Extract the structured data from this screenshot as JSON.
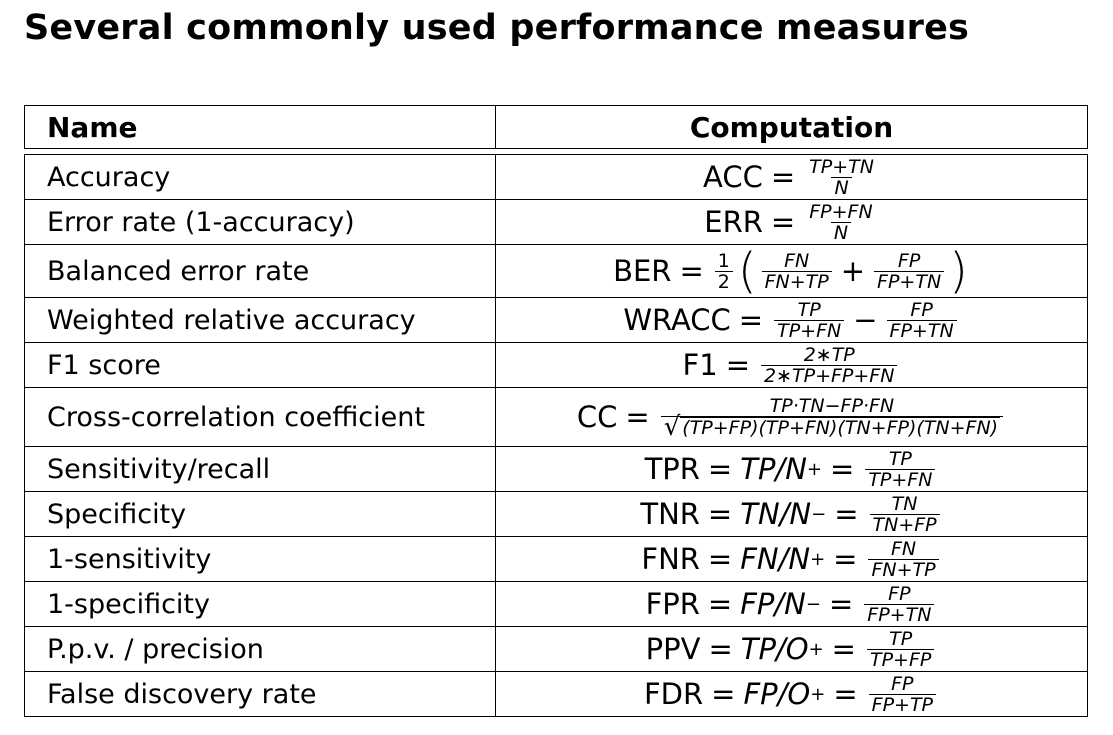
{
  "title": "Several commonly used performance measures",
  "table": {
    "headers": {
      "name": "Name",
      "computation": "Computation"
    },
    "rows": [
      {
        "name": "Accuracy",
        "lhs": "ACC",
        "num": "TP+TN",
        "den": "N"
      },
      {
        "name": "Error rate (1-accuracy)",
        "lhs": "ERR",
        "num": "FP+FN",
        "den": "N"
      },
      {
        "name": "Balanced error rate",
        "lhs": "BER",
        "half_num": "1",
        "half_den": "2",
        "f1_num": "FN",
        "f1_den": "FN+TP",
        "op": "+",
        "f2_num": "FP",
        "f2_den": "FP+TN"
      },
      {
        "name": "Weighted relative accuracy",
        "lhs": "WRACC",
        "f1_num": "TP",
        "f1_den": "TP+FN",
        "op": "−",
        "f2_num": "FP",
        "f2_den": "FP+TN"
      },
      {
        "name": "F1 score",
        "lhs": "F1",
        "num": "2∗TP",
        "den": "2∗TP+FP+FN"
      },
      {
        "name": "Cross-correlation coefficient",
        "lhs": "CC",
        "num": "TP·TN−FP·FN",
        "den": "(TP+FP)(TP+FN)(TN+FP)(TN+FN)"
      },
      {
        "name": "Sensitivity/recall",
        "lhs": "TPR",
        "mid": "TP/N",
        "sup": "+",
        "num": "TP",
        "den": "TP+FN"
      },
      {
        "name": "Specificity",
        "lhs": "TNR",
        "mid": "TN/N",
        "sup": "−",
        "num": "TN",
        "den": "TN+FP"
      },
      {
        "name": "1-sensitivity",
        "lhs": "FNR",
        "mid": "FN/N",
        "sup": "+",
        "num": "FN",
        "den": "FN+TP"
      },
      {
        "name": "1-specificity",
        "lhs": "FPR",
        "mid": "FP/N",
        "sup": "−",
        "num": "FP",
        "den": "FP+TN"
      },
      {
        "name": "P.p.v. / precision",
        "lhs": "PPV",
        "mid": "TP/O",
        "sup": "+",
        "num": "TP",
        "den": "TP+FP"
      },
      {
        "name": "False discovery rate",
        "lhs": "FDR",
        "mid": "FP/O",
        "sup": "+",
        "num": "FP",
        "den": "FP+TP"
      }
    ]
  }
}
